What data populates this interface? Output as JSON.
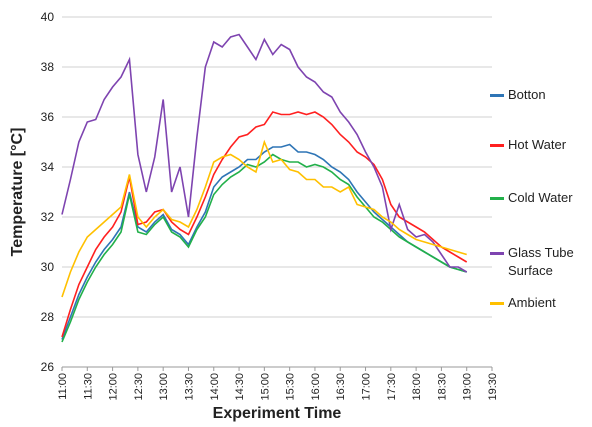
{
  "chart_data": {
    "type": "line",
    "x_label": "Experiment Time",
    "y_label": "Temperature [°C]",
    "x": [
      "11:00",
      "11:10",
      "11:20",
      "11:30",
      "11:40",
      "11:50",
      "12:00",
      "12:10",
      "12:20",
      "12:30",
      "12:40",
      "12:50",
      "13:00",
      "13:10",
      "13:20",
      "13:30",
      "13:40",
      "13:50",
      "14:00",
      "14:10",
      "14:20",
      "14:30",
      "14:40",
      "14:50",
      "15:00",
      "15:10",
      "15:20",
      "15:30",
      "15:40",
      "15:50",
      "16:00",
      "16:10",
      "16:20",
      "16:30",
      "16:40",
      "16:50",
      "17:00",
      "17:10",
      "17:20",
      "17:30",
      "17:40",
      "17:50",
      "18:00",
      "18:10",
      "18:20",
      "18:30",
      "18:40",
      "18:50",
      "19:00"
    ],
    "series": [
      {
        "name": "Botton",
        "color": "#2e75b6",
        "values": [
          27.1,
          28.0,
          28.9,
          29.6,
          30.2,
          30.7,
          31.1,
          31.6,
          33.0,
          31.6,
          31.4,
          31.8,
          32.1,
          31.5,
          31.3,
          30.9,
          31.6,
          32.2,
          33.2,
          33.6,
          33.8,
          34.0,
          34.3,
          34.3,
          34.6,
          34.8,
          34.8,
          34.9,
          34.6,
          34.6,
          34.5,
          34.3,
          34.0,
          33.8,
          33.5,
          33.0,
          32.6,
          32.2,
          31.9,
          31.6,
          31.3,
          31.0,
          30.8,
          30.6,
          30.4,
          30.2,
          30.0,
          29.9,
          29.8
        ]
      },
      {
        "name": "Hot Water",
        "color": "#ff2020",
        "values": [
          27.2,
          28.3,
          29.3,
          30.0,
          30.7,
          31.2,
          31.6,
          32.2,
          33.6,
          31.7,
          31.8,
          32.2,
          32.3,
          31.8,
          31.5,
          31.3,
          32.0,
          32.8,
          33.7,
          34.3,
          34.8,
          35.2,
          35.3,
          35.6,
          35.7,
          36.2,
          36.1,
          36.1,
          36.2,
          36.1,
          36.2,
          36.0,
          35.7,
          35.3,
          35.0,
          34.6,
          34.4,
          34.1,
          33.5,
          32.5,
          32.0,
          31.8,
          31.6,
          31.4,
          31.1,
          30.8,
          30.6,
          30.4,
          30.2
        ]
      },
      {
        "name": "Cold Water",
        "color": "#22b04a",
        "values": [
          27.0,
          27.8,
          28.7,
          29.4,
          30.0,
          30.5,
          30.9,
          31.4,
          32.9,
          31.4,
          31.3,
          31.7,
          32.0,
          31.4,
          31.2,
          30.8,
          31.5,
          32.0,
          32.9,
          33.3,
          33.6,
          33.8,
          34.1,
          34.0,
          34.2,
          34.5,
          34.3,
          34.2,
          34.2,
          34.0,
          34.1,
          34.0,
          33.8,
          33.5,
          33.3,
          32.8,
          32.4,
          32.0,
          31.8,
          31.5,
          31.2,
          31.0,
          30.8,
          30.6,
          30.4,
          30.2,
          30.0,
          29.9,
          29.8
        ]
      },
      {
        "name": "Glass Tube Surface",
        "color": "#7e44b0",
        "values": [
          32.1,
          33.5,
          35.0,
          35.8,
          35.9,
          36.7,
          37.2,
          37.6,
          38.3,
          34.5,
          33.0,
          34.4,
          36.7,
          33.0,
          34.0,
          32.0,
          35.2,
          38.0,
          39.0,
          38.8,
          39.2,
          39.3,
          38.8,
          38.3,
          39.1,
          38.5,
          38.9,
          38.7,
          38.0,
          37.6,
          37.4,
          37.0,
          36.8,
          36.2,
          35.8,
          35.3,
          34.6,
          34.0,
          33.2,
          31.5,
          32.5,
          31.5,
          31.2,
          31.3,
          31.0,
          30.5,
          30.0,
          30.0,
          29.8
        ]
      },
      {
        "name": "Ambient",
        "color": "#ffc000",
        "values": [
          28.8,
          29.8,
          30.6,
          31.2,
          31.5,
          31.8,
          32.1,
          32.4,
          33.7,
          32.0,
          31.6,
          32.0,
          32.3,
          31.9,
          31.8,
          31.6,
          32.3,
          33.2,
          34.2,
          34.4,
          34.5,
          34.3,
          34.0,
          33.8,
          35.0,
          34.2,
          34.3,
          33.9,
          33.8,
          33.5,
          33.5,
          33.2,
          33.2,
          33.0,
          33.2,
          32.5,
          32.4,
          32.3,
          32.0,
          31.8,
          31.5,
          31.3,
          31.1,
          31.0,
          30.9,
          30.8,
          30.7,
          30.6,
          30.5
        ]
      }
    ],
    "xlim": [
      "11:00",
      "19:30"
    ],
    "xticks": [
      "11:00",
      "11:30",
      "12:00",
      "12:30",
      "13:00",
      "13:30",
      "14:00",
      "14:30",
      "15:00",
      "15:30",
      "16:00",
      "16:30",
      "17:00",
      "17:30",
      "18:00",
      "18:30",
      "19:00",
      "19:30"
    ],
    "ylim": [
      26,
      40
    ],
    "yticks": [
      26,
      28,
      30,
      32,
      34,
      36,
      38,
      40
    ],
    "grid": true,
    "legend": "right"
  }
}
